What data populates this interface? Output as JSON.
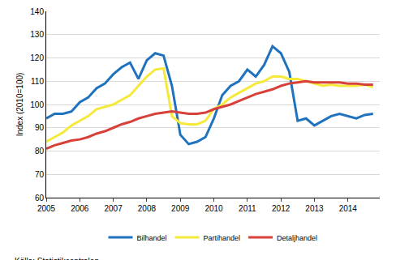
{
  "chart_data": {
    "type": "line",
    "y_label": "Index (2010=100)",
    "source": "Källa: Statistikcentralen",
    "x": [
      2005,
      2005.25,
      2005.5,
      2005.75,
      2006,
      2006.25,
      2006.5,
      2006.75,
      2007,
      2007.25,
      2007.5,
      2007.75,
      2008,
      2008.25,
      2008.5,
      2008.75,
      2009,
      2009.25,
      2009.5,
      2009.75,
      2010,
      2010.25,
      2010.5,
      2010.75,
      2011,
      2011.25,
      2011.5,
      2011.75,
      2012,
      2012.25,
      2012.5,
      2012.75,
      2013,
      2013.25,
      2013.5,
      2013.75,
      2014,
      2014.25,
      2014.5,
      2014.75
    ],
    "series": [
      {
        "name": "Bilhandel",
        "color": "#1f72bd",
        "values": [
          94,
          96,
          96,
          97,
          101,
          103,
          107,
          109,
          113,
          116,
          118,
          111,
          119,
          122,
          121,
          108,
          87,
          83,
          84,
          86,
          94,
          104,
          108,
          110,
          115,
          112,
          117,
          125,
          122,
          114,
          93,
          94,
          91,
          93,
          95,
          96,
          95,
          94,
          95.5,
          96
        ]
      },
      {
        "name": "Partihandel",
        "color": "#f5e93c",
        "values": [
          84,
          86,
          88,
          91,
          93,
          95,
          98,
          99,
          100,
          102,
          104,
          108,
          112,
          115,
          115.5,
          95,
          92,
          91.5,
          91.5,
          93,
          98,
          100,
          103,
          105,
          107,
          109,
          110,
          112,
          112,
          111,
          111,
          110,
          109,
          108,
          108.5,
          108,
          108,
          108,
          108.5,
          107.5
        ]
      },
      {
        "name": "Detaljhandel",
        "color": "#d8403a",
        "values": [
          81,
          82.5,
          83.5,
          84.5,
          85,
          86,
          87.5,
          88.5,
          90,
          91.5,
          92.5,
          94,
          95,
          96,
          96.5,
          97,
          96.5,
          96,
          96,
          96.5,
          98,
          99,
          100,
          101.5,
          103,
          104.5,
          105.5,
          106.5,
          108,
          109,
          109.5,
          110,
          109.5,
          109.5,
          109.5,
          109.5,
          109,
          109,
          108.5,
          108.5
        ]
      }
    ],
    "xlim": [
      2005,
      2014.95
    ],
    "xticks": [
      2005,
      2006,
      2007,
      2008,
      2009,
      2010,
      2011,
      2012,
      2013,
      2014
    ],
    "ylim": [
      60,
      140
    ],
    "yticks": [
      60,
      70,
      80,
      90,
      100,
      110,
      120,
      130,
      140
    ],
    "grid": true,
    "legend": "bottom"
  }
}
